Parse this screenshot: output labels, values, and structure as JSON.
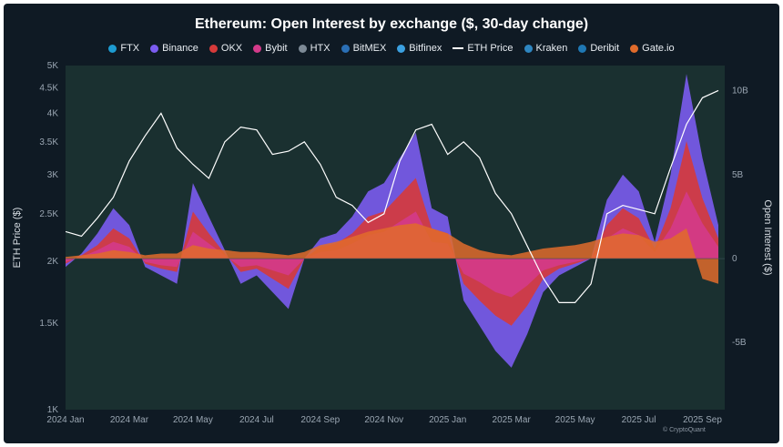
{
  "chart_data": {
    "type": "area",
    "title": "Ethereum: Open Interest by exchange ($, 30-day change)",
    "y_left_label": "ETH Price ($)",
    "y_right_label": "Open Interest ($)",
    "y_left_scale": "log",
    "y_left_range": [
      1000,
      5000
    ],
    "y_left_ticks": [
      "1K",
      "1.5K",
      "2K",
      "2.5K",
      "3K",
      "3.5K",
      "4K",
      "4.5K",
      "5K"
    ],
    "y_left_tick_values": [
      1000,
      1500,
      2000,
      2500,
      3000,
      3500,
      4000,
      4500,
      5000
    ],
    "y_right_range": [
      -9,
      11.5
    ],
    "y_right_ticks": [
      "10B",
      "5B",
      "0",
      "-5B"
    ],
    "y_right_tick_values": [
      10,
      5,
      0,
      -5
    ],
    "x_ticks": [
      "2024 Jan",
      "2024 Mar",
      "2024 May",
      "2024 Jul",
      "2024 Sep",
      "2024 Nov",
      "2025 Jan",
      "2025 Mar",
      "2025 May",
      "2025 Jul",
      "2025 Sep"
    ],
    "legend_position": "top",
    "grid": false,
    "legend": [
      {
        "name": "FTX",
        "color": "#1d9bd1"
      },
      {
        "name": "Binance",
        "color": "#7b5cf0"
      },
      {
        "name": "OKX",
        "color": "#d63a3a"
      },
      {
        "name": "Bybit",
        "color": "#d43a8a"
      },
      {
        "name": "HTX",
        "color": "#7d8a96"
      },
      {
        "name": "BitMEX",
        "color": "#2a6fb5"
      },
      {
        "name": "Bitfinex",
        "color": "#3ba0e0"
      },
      {
        "name": "ETH Price",
        "color": "#ffffff",
        "line": true
      },
      {
        "name": "Kraken",
        "color": "#2e86c1"
      },
      {
        "name": "Deribit",
        "color": "#1f78b4"
      },
      {
        "name": "Gate.io",
        "color": "#e06b2b"
      }
    ],
    "x_months": [
      0,
      0.5,
      1,
      1.5,
      2,
      2.5,
      3,
      3.5,
      4,
      4.5,
      5,
      5.5,
      6,
      6.5,
      7,
      7.5,
      8,
      8.5,
      9,
      9.5,
      10,
      10.5,
      11,
      11.5,
      12,
      12.5,
      13,
      13.5,
      14,
      14.5,
      15,
      15.5,
      16,
      16.5,
      17,
      17.5,
      18,
      18.5,
      19,
      19.5,
      20,
      20.5
    ],
    "eth_price": [
      2300,
      2250,
      2450,
      2700,
      3200,
      3600,
      4000,
      3400,
      3150,
      2950,
      3500,
      3750,
      3700,
      3300,
      3350,
      3500,
      3150,
      2700,
      2600,
      2400,
      2500,
      3200,
      3700,
      3800,
      3300,
      3500,
      3250,
      2750,
      2500,
      2150,
      1850,
      1650,
      1650,
      1800,
      2500,
      2600,
      2550,
      2500,
      3100,
      3800,
      4300,
      4450
    ],
    "series": [
      {
        "name": "Binance",
        "values": [
          -0.5,
          0.3,
          1.5,
          3.0,
          2.0,
          -0.5,
          -1.0,
          -1.5,
          4.5,
          2.5,
          0.5,
          -1.5,
          -1.0,
          -2.0,
          -3.0,
          0.0,
          1.2,
          1.5,
          2.5,
          4.0,
          4.5,
          6.0,
          7.5,
          3.0,
          2.5,
          -2.5,
          -4.0,
          -5.5,
          -6.5,
          -4.5,
          -2.0,
          -1.0,
          -0.5,
          0.0,
          3.5,
          5.0,
          4.0,
          1.0,
          5.0,
          11.0,
          6.0,
          2.0
        ]
      },
      {
        "name": "OKX",
        "values": [
          -0.3,
          0.2,
          0.8,
          1.8,
          1.2,
          -0.3,
          -0.6,
          -0.8,
          2.8,
          1.5,
          0.3,
          -0.8,
          -0.6,
          -1.2,
          -1.8,
          0.0,
          0.7,
          0.9,
          1.5,
          2.5,
          2.8,
          3.8,
          4.8,
          1.8,
          1.5,
          -1.5,
          -2.5,
          -3.4,
          -4.0,
          -2.8,
          -1.2,
          -0.6,
          -0.3,
          0.0,
          2.0,
          3.0,
          2.4,
          0.6,
          3.0,
          7.0,
          3.6,
          1.2
        ]
      },
      {
        "name": "Bybit",
        "values": [
          -0.2,
          0.1,
          0.5,
          1.0,
          0.7,
          -0.2,
          -0.4,
          -0.5,
          1.6,
          0.9,
          0.2,
          -0.5,
          -0.4,
          -0.7,
          -1.0,
          0.0,
          0.4,
          0.5,
          0.9,
          1.4,
          1.6,
          2.2,
          2.8,
          1.0,
          0.9,
          -0.9,
          -1.4,
          -2.0,
          -2.3,
          -1.6,
          -0.7,
          -0.4,
          -0.2,
          0.0,
          1.2,
          1.8,
          1.4,
          0.4,
          1.8,
          4.0,
          2.1,
          0.7
        ]
      },
      {
        "name": "Gate.io",
        "values": [
          0.1,
          0.2,
          0.3,
          0.5,
          0.4,
          0.2,
          0.3,
          0.3,
          0.8,
          0.6,
          0.5,
          0.4,
          0.4,
          0.3,
          0.2,
          0.4,
          0.8,
          1.0,
          1.3,
          1.6,
          1.8,
          2.0,
          2.1,
          1.8,
          1.5,
          0.9,
          0.5,
          0.3,
          0.2,
          0.4,
          0.6,
          0.7,
          0.8,
          1.0,
          1.3,
          1.5,
          1.4,
          1.0,
          1.2,
          1.8,
          -1.2,
          -1.5
        ]
      }
    ]
  }
}
